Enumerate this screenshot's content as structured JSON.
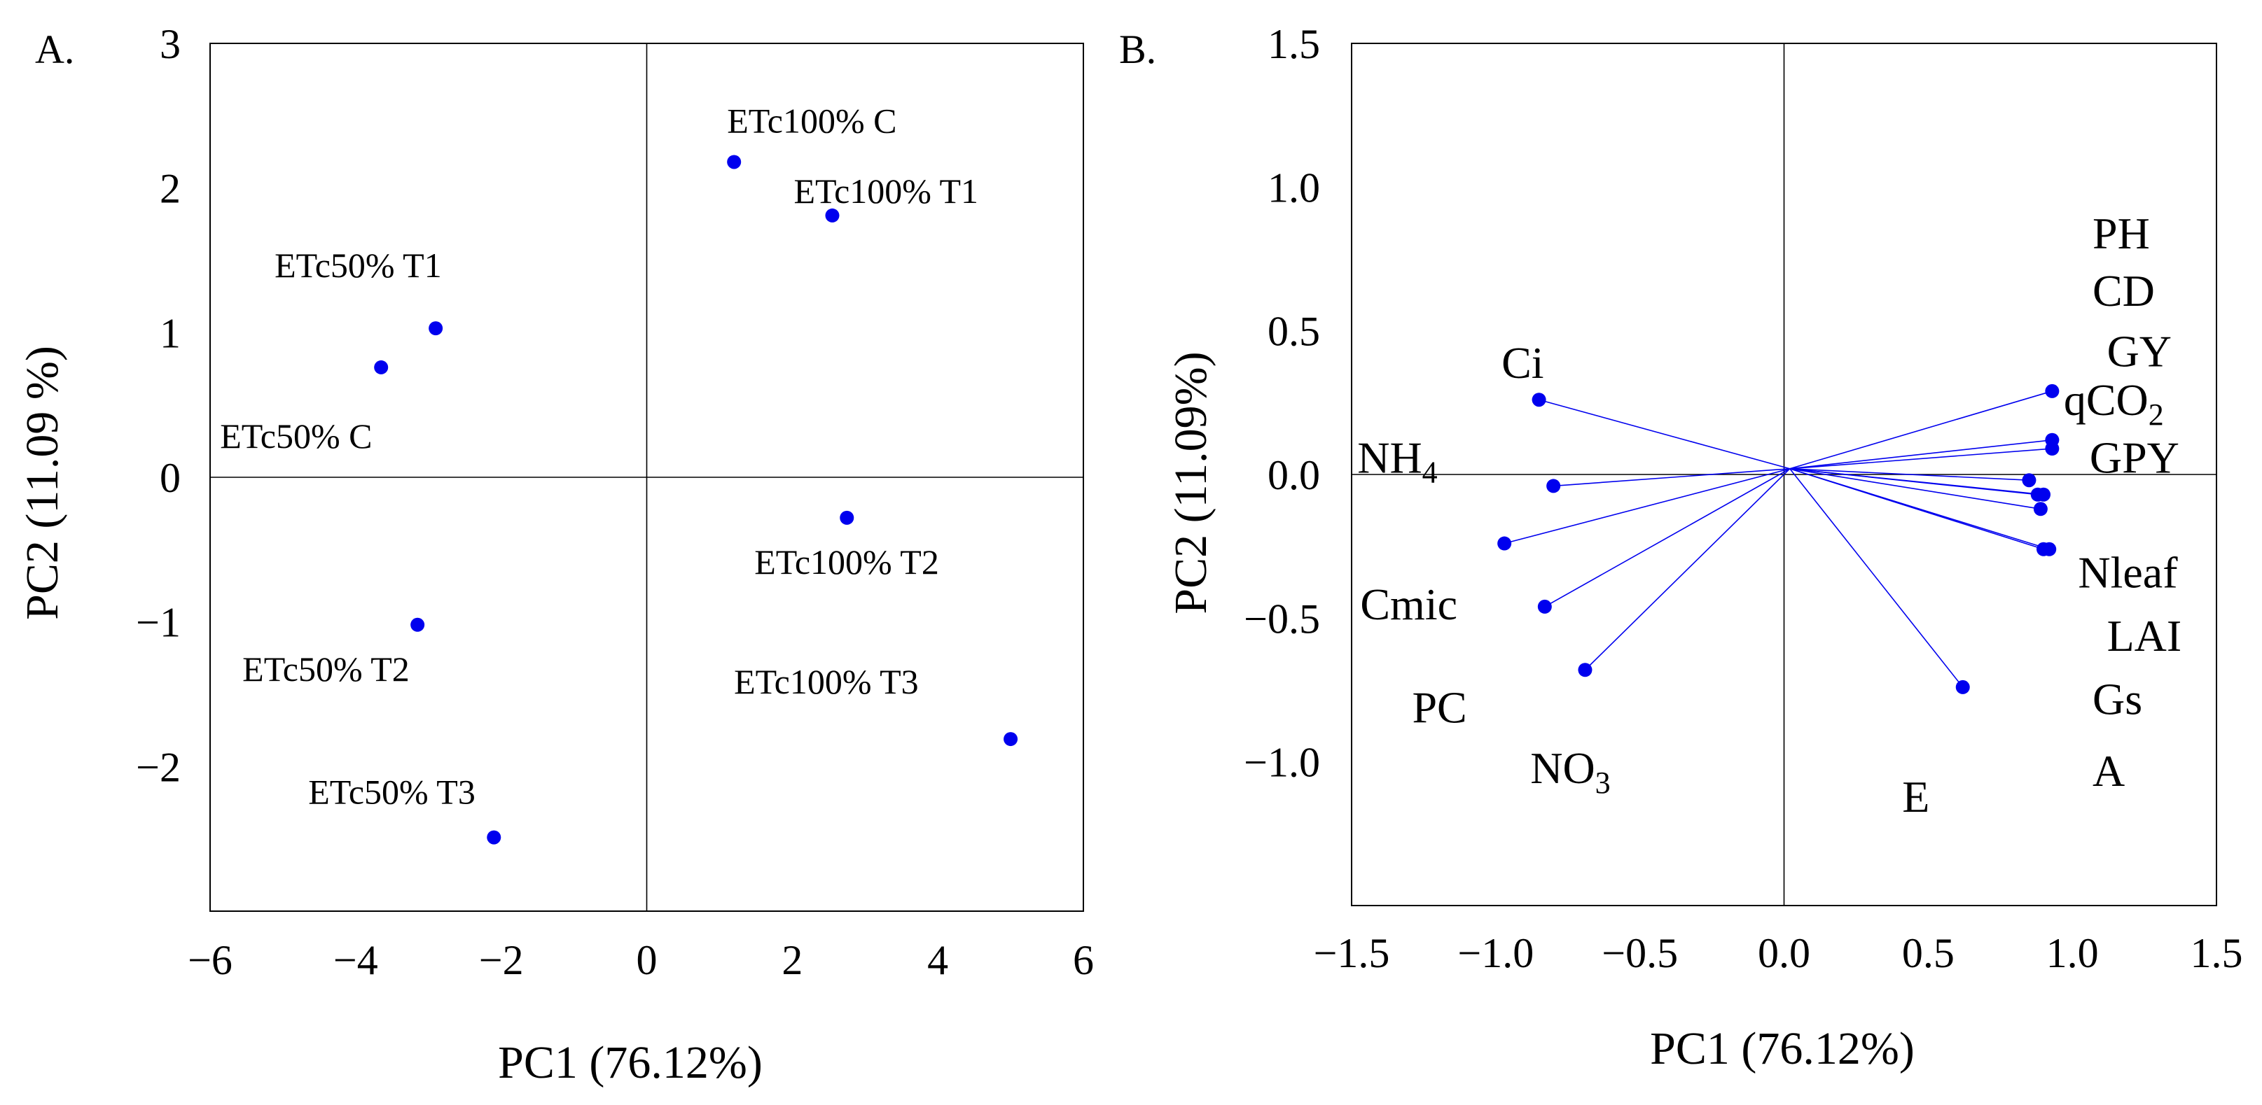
{
  "chart_data": [
    {
      "panel": "A.",
      "type": "scatter",
      "title": "",
      "xlabel": "PC1 (76.12%)",
      "ylabel": "PC2 (11.09 %)",
      "xlim": [
        -6,
        6
      ],
      "ylim": [
        -3,
        3
      ],
      "xticks": [
        -6,
        -4,
        -2,
        0,
        2,
        4,
        6
      ],
      "yticks": [
        -2,
        -1,
        0,
        1,
        2,
        3
      ],
      "xtick_labels": [
        "−6",
        "−4",
        "−2",
        "0",
        "2",
        "4",
        "6"
      ],
      "ytick_labels": [
        "−2",
        "−1",
        "0",
        "1",
        "2",
        "3"
      ],
      "color": "#0000ee",
      "points": [
        {
          "label": "ETc100% C",
          "x": 1.2,
          "y": 2.18
        },
        {
          "label": "ETc100% T1",
          "x": 2.55,
          "y": 1.81
        },
        {
          "label": "ETc50% T1",
          "x": -2.9,
          "y": 1.03
        },
        {
          "label": "ETc50% C",
          "x": -3.65,
          "y": 0.76
        },
        {
          "label": "ETc100% T2",
          "x": 2.75,
          "y": -0.28
        },
        {
          "label": "ETc50% T2",
          "x": -3.15,
          "y": -1.02
        },
        {
          "label": "ETc100% T3",
          "x": 5.0,
          "y": -1.81
        },
        {
          "label": "ETc50% T3",
          "x": -2.1,
          "y": -2.49
        }
      ]
    },
    {
      "panel": "B.",
      "type": "scatter",
      "title": "",
      "xlabel": "PC1 (76.12%)",
      "ylabel": "PC2 (11.09%)",
      "xlim": [
        -1.5,
        1.5
      ],
      "ylim": [
        -1.5,
        1.5
      ],
      "xticks": [
        -1.5,
        -1.0,
        -0.5,
        0.0,
        0.5,
        1.0,
        1.5
      ],
      "yticks": [
        -1.0,
        -0.5,
        0.0,
        0.5,
        1.0,
        1.5
      ],
      "xtick_labels": [
        "−1.5",
        "−1.0",
        "−0.5",
        "0.0",
        "0.5",
        "1.0",
        "1.5"
      ],
      "ytick_labels": [
        "−1.0",
        "−0.5",
        "0.0",
        "0.5",
        "1.0",
        "1.5"
      ],
      "color": "#0000ee",
      "origin": [
        0.02,
        0.02
      ],
      "loadings": [
        {
          "x": -0.85,
          "y": 0.26
        },
        {
          "x": -0.8,
          "y": -0.04
        },
        {
          "x": -0.97,
          "y": -0.24
        },
        {
          "x": -0.83,
          "y": -0.46
        },
        {
          "x": -0.69,
          "y": -0.68
        },
        {
          "x": 0.62,
          "y": -0.74
        },
        {
          "x": 0.93,
          "y": 0.29
        },
        {
          "x": 0.93,
          "y": 0.12
        },
        {
          "x": 0.93,
          "y": 0.09
        },
        {
          "x": 0.85,
          "y": -0.02
        },
        {
          "x": 0.88,
          "y": -0.07
        },
        {
          "x": 0.9,
          "y": -0.07
        },
        {
          "x": 0.89,
          "y": -0.12
        },
        {
          "x": 0.9,
          "y": -0.26
        },
        {
          "x": 0.92,
          "y": -0.26
        }
      ],
      "variable_labels": [
        {
          "text": "Ci",
          "x": -0.98,
          "y": 0.39
        },
        {
          "text": "NH",
          "sub": "4",
          "x": -1.48,
          "y": 0.06
        },
        {
          "text": "Cmic",
          "x": -1.47,
          "y": -0.45
        },
        {
          "text": "PC",
          "x": -1.29,
          "y": -0.81
        },
        {
          "text": "NO",
          "sub": "3",
          "x": -0.88,
          "y": -1.02
        },
        {
          "text": "E",
          "x": 0.41,
          "y": -1.12
        },
        {
          "text": "PH",
          "x": 1.07,
          "y": 0.84
        },
        {
          "text": "CD",
          "x": 1.07,
          "y": 0.64
        },
        {
          "text": "GY",
          "x": 1.12,
          "y": 0.43
        },
        {
          "text": "qCO",
          "sub": "2",
          "x": 0.97,
          "y": 0.26
        },
        {
          "text": "GPY",
          "x": 1.06,
          "y": 0.06
        },
        {
          "text": "Nleaf",
          "x": 1.02,
          "y": -0.34
        },
        {
          "text": "LAI",
          "x": 1.12,
          "y": -0.56
        },
        {
          "text": "Gs",
          "x": 1.07,
          "y": -0.78
        },
        {
          "text": "A",
          "x": 1.07,
          "y": -1.03
        }
      ]
    }
  ]
}
